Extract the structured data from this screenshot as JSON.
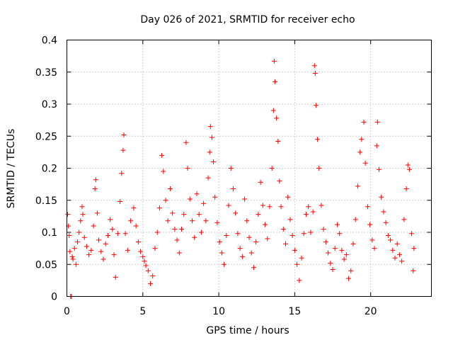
{
  "chart_data": {
    "type": "scatter",
    "title": "Day 026 of 2021, SRMTID for receiver echo",
    "xlabel": "GPS time / hours",
    "ylabel": "SRMTID / TECUs",
    "xlim": [
      0,
      24
    ],
    "ylim": [
      0,
      0.4
    ],
    "xticks": [
      0,
      5,
      10,
      15,
      20
    ],
    "xtick_labels": [
      "0",
      "5",
      "10",
      "15",
      "20"
    ],
    "yticks": [
      0,
      0.05,
      0.1,
      0.15,
      0.2,
      0.25,
      0.3,
      0.35,
      0.4
    ],
    "ytick_labels": [
      "0",
      "0.05",
      "0.1",
      "0.15",
      "0.2",
      "0.25",
      "0.3",
      "0.35",
      "0.4"
    ],
    "grid": true,
    "marker": "plus",
    "color": "#ff0000",
    "series": [
      {
        "name": "SRMTID",
        "points": [
          [
            0.05,
            0.128
          ],
          [
            0.1,
            0.11
          ],
          [
            0.15,
            0.095
          ],
          [
            0.2,
            0.07
          ],
          [
            0.25,
            0.0
          ],
          [
            0.3,
            0.0
          ],
          [
            0.35,
            0.062
          ],
          [
            0.4,
            0.058
          ],
          [
            0.5,
            0.075
          ],
          [
            0.6,
            0.05
          ],
          [
            0.7,
            0.085
          ],
          [
            0.8,
            0.1
          ],
          [
            0.9,
            0.118
          ],
          [
            1.0,
            0.14
          ],
          [
            1.05,
            0.128
          ],
          [
            1.15,
            0.092
          ],
          [
            1.3,
            0.078
          ],
          [
            1.45,
            0.065
          ],
          [
            1.6,
            0.072
          ],
          [
            1.75,
            0.11
          ],
          [
            1.85,
            0.168
          ],
          [
            1.9,
            0.182
          ],
          [
            2.0,
            0.13
          ],
          [
            2.1,
            0.088
          ],
          [
            2.25,
            0.07
          ],
          [
            2.4,
            0.058
          ],
          [
            2.55,
            0.082
          ],
          [
            2.7,
            0.095
          ],
          [
            2.85,
            0.12
          ],
          [
            3.0,
            0.105
          ],
          [
            3.1,
            0.065
          ],
          [
            3.2,
            0.03
          ],
          [
            3.35,
            0.098
          ],
          [
            3.5,
            0.148
          ],
          [
            3.6,
            0.192
          ],
          [
            3.7,
            0.228
          ],
          [
            3.75,
            0.252
          ],
          [
            3.85,
            0.098
          ],
          [
            4.0,
            0.072
          ],
          [
            4.2,
            0.118
          ],
          [
            4.4,
            0.138
          ],
          [
            4.55,
            0.11
          ],
          [
            4.7,
            0.085
          ],
          [
            4.85,
            0.07
          ],
          [
            5.0,
            0.062
          ],
          [
            5.1,
            0.055
          ],
          [
            5.2,
            0.048
          ],
          [
            5.35,
            0.04
          ],
          [
            5.5,
            0.02
          ],
          [
            5.65,
            0.032
          ],
          [
            5.8,
            0.075
          ],
          [
            5.95,
            0.1
          ],
          [
            6.1,
            0.138
          ],
          [
            6.25,
            0.22
          ],
          [
            6.35,
            0.195
          ],
          [
            6.5,
            0.15
          ],
          [
            6.65,
            0.118
          ],
          [
            6.8,
            0.168
          ],
          [
            6.95,
            0.13
          ],
          [
            7.1,
            0.105
          ],
          [
            7.25,
            0.088
          ],
          [
            7.4,
            0.068
          ],
          [
            7.55,
            0.105
          ],
          [
            7.7,
            0.128
          ],
          [
            7.85,
            0.24
          ],
          [
            7.95,
            0.2
          ],
          [
            8.1,
            0.152
          ],
          [
            8.25,
            0.118
          ],
          [
            8.4,
            0.092
          ],
          [
            8.55,
            0.16
          ],
          [
            8.7,
            0.128
          ],
          [
            8.85,
            0.1
          ],
          [
            9.0,
            0.145
          ],
          [
            9.15,
            0.118
          ],
          [
            9.3,
            0.185
          ],
          [
            9.4,
            0.225
          ],
          [
            9.45,
            0.265
          ],
          [
            9.55,
            0.248
          ],
          [
            9.65,
            0.21
          ],
          [
            9.75,
            0.155
          ],
          [
            9.9,
            0.115
          ],
          [
            10.05,
            0.085
          ],
          [
            10.2,
            0.068
          ],
          [
            10.35,
            0.05
          ],
          [
            10.5,
            0.095
          ],
          [
            10.65,
            0.142
          ],
          [
            10.8,
            0.2
          ],
          [
            10.95,
            0.168
          ],
          [
            11.1,
            0.13
          ],
          [
            11.25,
            0.098
          ],
          [
            11.4,
            0.075
          ],
          [
            11.55,
            0.062
          ],
          [
            11.7,
            0.152
          ],
          [
            11.85,
            0.118
          ],
          [
            12.0,
            0.092
          ],
          [
            12.15,
            0.068
          ],
          [
            12.3,
            0.045
          ],
          [
            12.45,
            0.085
          ],
          [
            12.6,
            0.128
          ],
          [
            12.75,
            0.178
          ],
          [
            12.9,
            0.142
          ],
          [
            13.05,
            0.112
          ],
          [
            13.2,
            0.09
          ],
          [
            13.35,
            0.14
          ],
          [
            13.5,
            0.2
          ],
          [
            13.6,
            0.29
          ],
          [
            13.65,
            0.367
          ],
          [
            13.7,
            0.335
          ],
          [
            13.8,
            0.278
          ],
          [
            13.9,
            0.242
          ],
          [
            14.0,
            0.18
          ],
          [
            14.1,
            0.14
          ],
          [
            14.25,
            0.105
          ],
          [
            14.4,
            0.082
          ],
          [
            14.55,
            0.155
          ],
          [
            14.7,
            0.12
          ],
          [
            14.85,
            0.095
          ],
          [
            15.0,
            0.072
          ],
          [
            15.15,
            0.05
          ],
          [
            15.3,
            0.025
          ],
          [
            15.45,
            0.06
          ],
          [
            15.6,
            0.098
          ],
          [
            15.75,
            0.128
          ],
          [
            15.9,
            0.14
          ],
          [
            16.05,
            0.1
          ],
          [
            16.2,
            0.132
          ],
          [
            16.3,
            0.36
          ],
          [
            16.35,
            0.348
          ],
          [
            16.4,
            0.298
          ],
          [
            16.5,
            0.245
          ],
          [
            16.6,
            0.2
          ],
          [
            16.75,
            0.142
          ],
          [
            16.9,
            0.105
          ],
          [
            17.05,
            0.085
          ],
          [
            17.2,
            0.068
          ],
          [
            17.35,
            0.052
          ],
          [
            17.5,
            0.042
          ],
          [
            17.65,
            0.075
          ],
          [
            17.8,
            0.112
          ],
          [
            17.95,
            0.098
          ],
          [
            18.1,
            0.072
          ],
          [
            18.25,
            0.058
          ],
          [
            18.4,
            0.065
          ],
          [
            18.55,
            0.028
          ],
          [
            18.7,
            0.04
          ],
          [
            18.85,
            0.082
          ],
          [
            19.0,
            0.12
          ],
          [
            19.15,
            0.172
          ],
          [
            19.3,
            0.225
          ],
          [
            19.4,
            0.245
          ],
          [
            19.55,
            0.272
          ],
          [
            19.65,
            0.208
          ],
          [
            19.8,
            0.14
          ],
          [
            19.95,
            0.112
          ],
          [
            20.1,
            0.088
          ],
          [
            20.25,
            0.075
          ],
          [
            20.4,
            0.235
          ],
          [
            20.45,
            0.272
          ],
          [
            20.55,
            0.198
          ],
          [
            20.7,
            0.155
          ],
          [
            20.85,
            0.132
          ],
          [
            21.0,
            0.115
          ],
          [
            21.15,
            0.095
          ],
          [
            21.3,
            0.088
          ],
          [
            21.45,
            0.072
          ],
          [
            21.6,
            0.06
          ],
          [
            21.75,
            0.082
          ],
          [
            21.9,
            0.065
          ],
          [
            22.05,
            0.055
          ],
          [
            22.2,
            0.12
          ],
          [
            22.35,
            0.168
          ],
          [
            22.45,
            0.205
          ],
          [
            22.55,
            0.198
          ],
          [
            22.7,
            0.098
          ],
          [
            22.8,
            0.04
          ],
          [
            22.85,
            0.075
          ]
        ]
      }
    ]
  }
}
